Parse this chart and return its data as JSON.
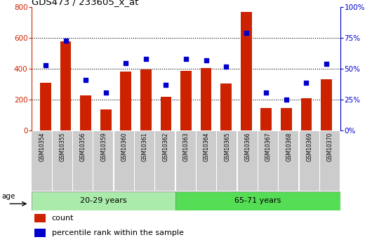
{
  "title": "GDS473 / 233605_x_at",
  "categories": [
    "GSM10354",
    "GSM10355",
    "GSM10356",
    "GSM10359",
    "GSM10360",
    "GSM10361",
    "GSM10362",
    "GSM10363",
    "GSM10364",
    "GSM10365",
    "GSM10366",
    "GSM10367",
    "GSM10368",
    "GSM10369",
    "GSM10370"
  ],
  "counts": [
    310,
    580,
    228,
    140,
    385,
    395,
    220,
    390,
    405,
    305,
    770,
    148,
    148,
    210,
    335
  ],
  "percentiles": [
    53,
    73,
    41,
    31,
    55,
    58,
    37,
    58,
    57,
    52,
    79,
    31,
    25,
    39,
    54
  ],
  "group1_label": "20-29 years",
  "group2_label": "65-71 years",
  "group1_count": 7,
  "group2_count": 8,
  "bar_color": "#cc2200",
  "dot_color": "#0000cc",
  "ylim_left": [
    0,
    800
  ],
  "ylim_right": [
    0,
    100
  ],
  "yticks_left": [
    0,
    200,
    400,
    600,
    800
  ],
  "yticks_right": [
    0,
    25,
    50,
    75,
    100
  ],
  "ytick_labels_right": [
    "0%",
    "25%",
    "50%",
    "75%",
    "100%"
  ],
  "group1_bg": "#aaeaaa",
  "group2_bg": "#55dd55",
  "xticklabel_bg": "#cccccc",
  "legend_count_label": "count",
  "legend_pct_label": "percentile rank within the sample",
  "age_label": "age"
}
